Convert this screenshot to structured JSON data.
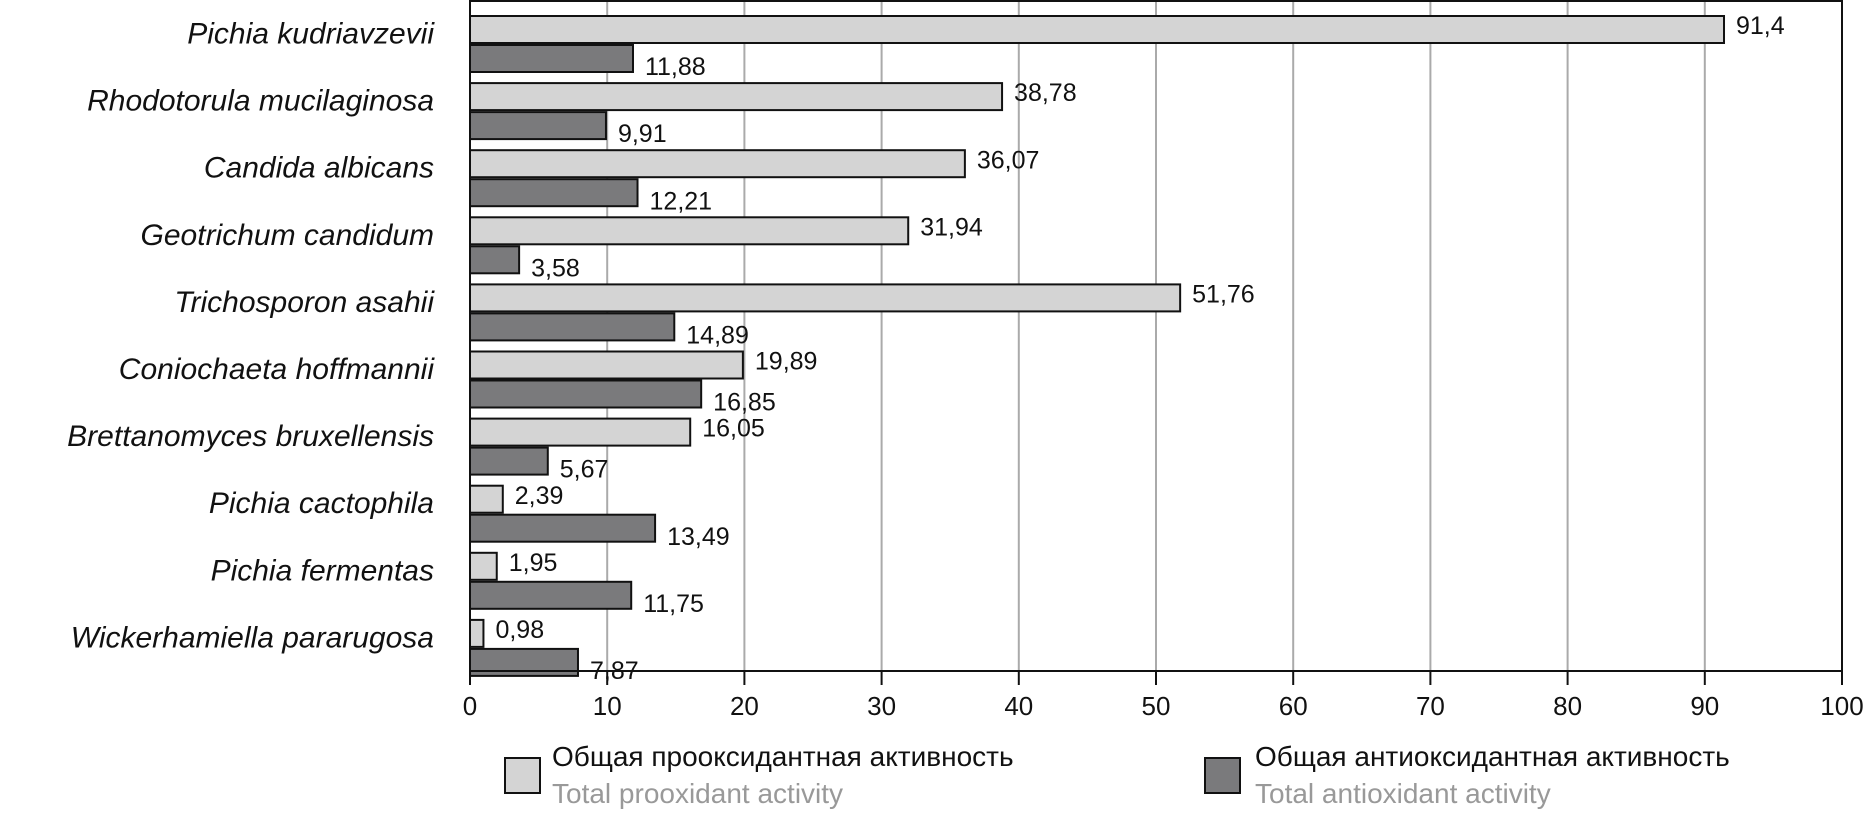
{
  "chart_data": {
    "type": "bar",
    "orientation": "horizontal",
    "categories": [
      "Pichia kudriavzevii",
      "Rhodotorula mucilaginosa",
      "Candida albicans",
      "Geotrichum candidum",
      "Trichosporon asahii",
      "Coniochaeta hoffmannii",
      "Brettanomyces bruxellensis",
      "Pichia cactophila",
      "Pichia fermentas",
      "Wickerhamiella pararugosa"
    ],
    "series": [
      {
        "name": "Общая прооксидантная активность",
        "name_en": "Total prooxidant activity",
        "color": "#d4d4d4",
        "values": [
          91.4,
          38.78,
          36.07,
          31.94,
          51.76,
          19.89,
          16.05,
          2.39,
          1.95,
          0.98
        ],
        "labels": [
          "91,4",
          "38,78",
          "36,07",
          "31,94",
          "51,76",
          "19,89",
          "16,05",
          "2,39",
          "1,95",
          "0,98"
        ]
      },
      {
        "name": "Общая антиоксидантная активность",
        "name_en": "Total antioxidant activity",
        "color": "#7a7a7c",
        "values": [
          11.88,
          9.91,
          12.21,
          3.58,
          14.89,
          16.85,
          5.67,
          13.49,
          11.75,
          7.87
        ],
        "labels": [
          "11,88",
          "9,91",
          "12,21",
          "3,58",
          "14,89",
          "16,85",
          "5,67",
          "13,49",
          "11,75",
          "7,87"
        ]
      }
    ],
    "xlim": [
      0,
      100
    ],
    "xticks": [
      0,
      10,
      20,
      30,
      40,
      50,
      60,
      70,
      80,
      90,
      100
    ],
    "title": "",
    "xlabel": "",
    "ylabel": "",
    "grid": "vertical",
    "legend_position": "bottom"
  }
}
